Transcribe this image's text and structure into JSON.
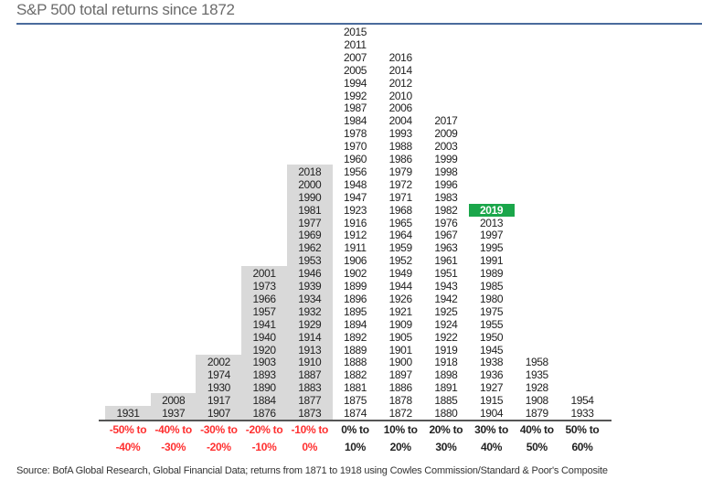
{
  "subtitle": "S&P 500 total returns since 1872",
  "source": "Source:  BofA Global Research, Global Financial Data; returns from 1871 to 1918 using Cowles Commission/Standard  & Poor's Composite",
  "colors": {
    "negative_label": "#ff3030",
    "positive_label": "#222222",
    "negative_fill": "#d9d9d9",
    "highlight": "#1aa64a",
    "rule": "#4a6b9c"
  },
  "chart_data": {
    "type": "table",
    "subtitle": "S&P 500 total returns since 1872",
    "highlight_year": "2019",
    "categories": [
      {
        "line1": "-50% to",
        "line2": "-40%",
        "negative": true,
        "years": [
          "1931"
        ]
      },
      {
        "line1": "-40% to",
        "line2": "-30%",
        "negative": true,
        "years": [
          "2008",
          "1937"
        ]
      },
      {
        "line1": "-30% to",
        "line2": "-20%",
        "negative": true,
        "years": [
          "2002",
          "1974",
          "1930",
          "1917",
          "1907"
        ]
      },
      {
        "line1": "-20% to",
        "line2": "-10%",
        "negative": true,
        "years": [
          "2001",
          "1973",
          "1966",
          "1957",
          "1941",
          "1940",
          "1920",
          "1903",
          "1893",
          "1890",
          "1884",
          "1876"
        ]
      },
      {
        "line1": "-10% to",
        "line2": "0%",
        "negative": true,
        "years": [
          "2018",
          "2000",
          "1990",
          "1981",
          "1977",
          "1969",
          "1962",
          "1953",
          "1946",
          "1939",
          "1934",
          "1932",
          "1929",
          "1914",
          "1913",
          "1910",
          "1887",
          "1883",
          "1877",
          "1873"
        ]
      },
      {
        "line1": "0% to",
        "line2": "10%",
        "negative": false,
        "years": [
          "2015",
          "2011",
          "2007",
          "2005",
          "1994",
          "1992",
          "1987",
          "1984",
          "1978",
          "1970",
          "1960",
          "1956",
          "1948",
          "1947",
          "1923",
          "1916",
          "1912",
          "1911",
          "1906",
          "1902",
          "1899",
          "1896",
          "1895",
          "1894",
          "1892",
          "1889",
          "1888",
          "1882",
          "1881",
          "1875",
          "1874"
        ]
      },
      {
        "line1": "10% to",
        "line2": "20%",
        "negative": false,
        "years": [
          "2016",
          "2014",
          "2012",
          "2010",
          "2006",
          "2004",
          "1993",
          "1988",
          "1986",
          "1979",
          "1972",
          "1971",
          "1968",
          "1965",
          "1964",
          "1959",
          "1952",
          "1949",
          "1944",
          "1926",
          "1921",
          "1909",
          "1905",
          "1901",
          "1900",
          "1897",
          "1886",
          "1878",
          "1872"
        ]
      },
      {
        "line1": "20% to",
        "line2": "30%",
        "negative": false,
        "years": [
          "2017",
          "2009",
          "2003",
          "1999",
          "1998",
          "1996",
          "1983",
          "1982",
          "1976",
          "1967",
          "1963",
          "1961",
          "1951",
          "1943",
          "1942",
          "1925",
          "1924",
          "1922",
          "1919",
          "1918",
          "1898",
          "1891",
          "1885",
          "1880"
        ]
      },
      {
        "line1": "30% to",
        "line2": "40%",
        "negative": false,
        "years": [
          "2019",
          "2013",
          "1997",
          "1995",
          "1991",
          "1989",
          "1985",
          "1980",
          "1975",
          "1955",
          "1950",
          "1945",
          "1938",
          "1936",
          "1927",
          "1915",
          "1904"
        ]
      },
      {
        "line1": "40% to",
        "line2": "50%",
        "negative": false,
        "years": [
          "1958",
          "1935",
          "1928",
          "1908",
          "1879"
        ]
      },
      {
        "line1": "50% to",
        "line2": "60%",
        "negative": false,
        "years": [
          "1954",
          "1933"
        ]
      }
    ]
  }
}
